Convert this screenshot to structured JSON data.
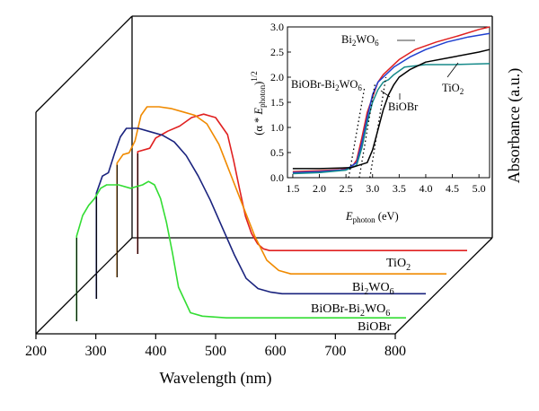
{
  "chart_data": [
    {
      "type": "line",
      "view": "3d-waterfall",
      "xlabel": "Wavelength (nm)",
      "ylabel": "Absorbance (a.u.)",
      "xlim": [
        200,
        800
      ],
      "xticks": [
        "200",
        "300",
        "400",
        "500",
        "600",
        "700",
        "800"
      ],
      "series": [
        {
          "name": "BiOBr",
          "color": "#33dd33",
          "x": [
            250,
            260,
            270,
            280,
            290,
            300,
            320,
            340,
            360,
            370,
            380,
            390,
            400,
            410,
            420,
            440,
            460,
            500,
            600,
            700,
            800
          ],
          "y": [
            0.5,
            0.62,
            0.68,
            0.72,
            0.78,
            0.8,
            0.8,
            0.78,
            0.8,
            0.82,
            0.8,
            0.72,
            0.58,
            0.4,
            0.2,
            0.05,
            0.03,
            0.02,
            0.02,
            0.02,
            0.02
          ]
        },
        {
          "name": "BiOBr-Bi2WO6",
          "color": "#1a237e",
          "x": [
            250,
            260,
            270,
            280,
            290,
            300,
            320,
            340,
            360,
            380,
            400,
            420,
            440,
            460,
            480,
            500,
            520,
            540,
            560,
            600,
            700,
            800
          ],
          "y": [
            0.62,
            0.72,
            0.74,
            0.85,
            0.95,
            1.0,
            1.0,
            0.98,
            0.96,
            0.92,
            0.84,
            0.72,
            0.58,
            0.42,
            0.26,
            0.12,
            0.06,
            0.04,
            0.03,
            0.03,
            0.03,
            0.03
          ]
        },
        {
          "name": "Bi2WO6",
          "color": "#f08a00",
          "x": [
            250,
            260,
            270,
            280,
            290,
            300,
            320,
            340,
            360,
            380,
            400,
            420,
            440,
            460,
            480,
            500,
            520,
            540,
            560,
            600,
            700,
            800
          ],
          "y": [
            0.67,
            0.72,
            0.73,
            0.8,
            0.95,
            1.0,
            1.0,
            0.99,
            0.97,
            0.95,
            0.9,
            0.78,
            0.6,
            0.42,
            0.24,
            0.1,
            0.04,
            0.02,
            0.02,
            0.02,
            0.02,
            0.02
          ]
        },
        {
          "name": "TiO2",
          "color": "#e02020",
          "x": [
            250,
            270,
            280,
            290,
            300,
            320,
            340,
            360,
            380,
            400,
            410,
            420,
            430,
            440,
            450,
            460,
            470,
            480,
            500,
            600,
            700,
            800
          ],
          "y": [
            0.6,
            0.62,
            0.68,
            0.7,
            0.72,
            0.75,
            0.8,
            0.82,
            0.8,
            0.7,
            0.55,
            0.38,
            0.22,
            0.12,
            0.06,
            0.03,
            0.02,
            0.02,
            0.02,
            0.02,
            0.02,
            0.02
          ]
        }
      ]
    },
    {
      "type": "line",
      "view": "inset",
      "xlabel_main": "E",
      "xlabel_sub": "photon",
      "xlabel_unit": " (eV)",
      "ylabel_pre": "(α * ",
      "ylabel_e": "E",
      "ylabel_sub": "photon",
      "ylabel_post": ")",
      "ylabel_sup": "1/2",
      "xlim": [
        1.4,
        5.2
      ],
      "ylim": [
        0,
        3.0
      ],
      "xticks": [
        "1.5",
        "2.0",
        "2.5",
        "3.0",
        "3.5",
        "4.0",
        "4.5",
        "5.0"
      ],
      "yticks": [
        "0.0",
        "0.5",
        "1.0",
        "1.5",
        "2.0",
        "2.5",
        "3.0"
      ],
      "series": [
        {
          "name": "Bi2WO6",
          "color": "#e02020",
          "x": [
            1.5,
            2.0,
            2.4,
            2.6,
            2.7,
            2.8,
            2.9,
            3.0,
            3.1,
            3.2,
            3.3,
            3.5,
            3.8,
            4.2,
            4.6,
            5.0,
            5.2
          ],
          "y": [
            0.12,
            0.14,
            0.16,
            0.2,
            0.35,
            0.8,
            1.3,
            1.6,
            1.9,
            2.05,
            2.15,
            2.35,
            2.55,
            2.7,
            2.82,
            2.95,
            3.0
          ]
        },
        {
          "name": "BiOBr-Bi2WO6",
          "color": "#2040d0",
          "x": [
            1.5,
            2.0,
            2.5,
            2.7,
            2.8,
            2.9,
            3.0,
            3.1,
            3.2,
            3.4,
            3.7,
            4.0,
            4.4,
            4.8,
            5.2
          ],
          "y": [
            0.1,
            0.12,
            0.16,
            0.3,
            0.7,
            1.2,
            1.65,
            1.9,
            2.0,
            2.2,
            2.4,
            2.55,
            2.7,
            2.8,
            2.87
          ]
        },
        {
          "name": "BiOBr",
          "color": "#168a8a",
          "x": [
            1.5,
            2.0,
            2.5,
            2.7,
            2.8,
            2.9,
            3.0,
            3.1,
            3.2,
            3.3,
            3.4,
            3.6,
            4.0,
            4.5,
            5.2
          ],
          "y": [
            0.08,
            0.1,
            0.15,
            0.25,
            0.6,
            1.1,
            1.5,
            1.75,
            1.9,
            1.95,
            2.05,
            2.2,
            2.25,
            2.25,
            2.27
          ]
        },
        {
          "name": "TiO2",
          "color": "#000000",
          "x": [
            1.5,
            2.0,
            2.6,
            2.9,
            3.0,
            3.1,
            3.2,
            3.3,
            3.4,
            3.5,
            3.7,
            4.0,
            4.5,
            5.0,
            5.2
          ],
          "y": [
            0.18,
            0.18,
            0.2,
            0.3,
            0.55,
            0.95,
            1.35,
            1.65,
            1.85,
            2.0,
            2.15,
            2.3,
            2.4,
            2.5,
            2.55
          ]
        },
        {
          "name": "fit",
          "color": "#000000",
          "dotted": true,
          "x": [
            2.55,
            2.85,
            2.75,
            3.05,
            2.95,
            3.25
          ],
          "y": [
            0,
            1.8,
            0,
            1.9,
            0,
            2.0
          ]
        }
      ]
    }
  ],
  "labels": {
    "tio2": [
      "TiO",
      "2",
      ""
    ],
    "bi2wo6": [
      "Bi",
      "2",
      "WO",
      "6"
    ],
    "composite": [
      "BiOBr-Bi",
      "2",
      "WO",
      "6"
    ],
    "biobr": "BiOBr"
  },
  "inset_labels": {
    "bi2wo6": [
      "Bi",
      "2",
      "WO",
      "6"
    ],
    "composite": [
      "BiOBr-Bi",
      "2",
      "WO",
      "6"
    ],
    "biobr": "BiOBr",
    "tio2": [
      "TiO",
      "2"
    ]
  }
}
